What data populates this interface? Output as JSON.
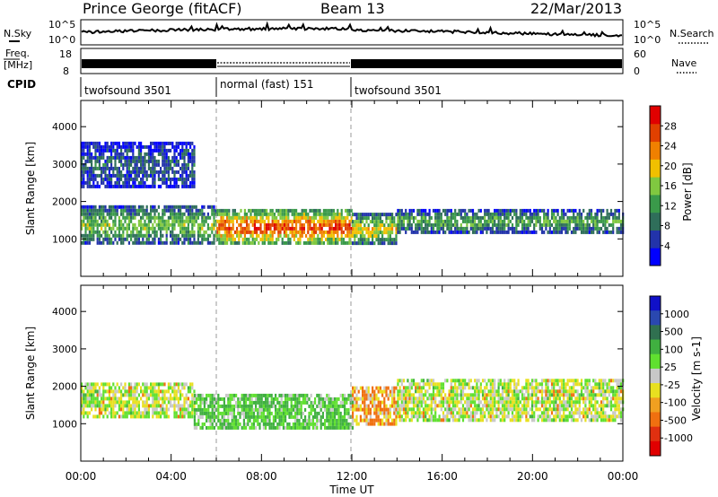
{
  "header": {
    "title": "Prince George (fitACF)",
    "beam": "Beam 13",
    "date": "22/Mar/2013"
  },
  "top_panels": {
    "nsky_label": "N.Sky",
    "nsearch_label": "N.Search",
    "noise_ticks": [
      "10^5",
      "10^0"
    ],
    "freq_label_1": "Freq.",
    "freq_label_2": "[MHz]",
    "freq_ticks": [
      "18",
      "8"
    ],
    "nave_label": "Nave",
    "nave_ticks": [
      "60",
      "0"
    ],
    "cpid_label": "CPID",
    "cpid_segments": [
      "twofsound 3501",
      "normal (fast) 151",
      "twofsound 3501"
    ]
  },
  "colors": {
    "power": [
      "#0000ff",
      "#2233aa",
      "#2f6e5a",
      "#3a9a4a",
      "#80c840",
      "#f0c000",
      "#f08000",
      "#e04000",
      "#e00000"
    ],
    "velocity": [
      "#1010c8",
      "#2a48b0",
      "#307050",
      "#40b040",
      "#60e030",
      "#c8c8c8",
      "#e8e020",
      "#f0a020",
      "#f07010",
      "#e03010",
      "#e00000"
    ]
  },
  "chart_data": [
    {
      "type": "heatmap",
      "name": "Power",
      "ylabel": "Slant Range [km]",
      "xlabel": "Time UT",
      "x_ticks": [
        "00:00",
        "04:00",
        "08:00",
        "12:00",
        "16:00",
        "20:00",
        "00:00"
      ],
      "y_ticks": [
        "1000",
        "2000",
        "3000",
        "4000"
      ],
      "ylim": [
        0,
        4700
      ],
      "colorbar": {
        "label": "Power [dB]",
        "ticks": [
          "4",
          "8",
          "12",
          "16",
          "20",
          "24",
          "28"
        ],
        "range": [
          0,
          32
        ]
      },
      "bands": [
        {
          "t": [
            0,
            6
          ],
          "range": [
            900,
            1900
          ],
          "value": 16
        },
        {
          "t": [
            6,
            12
          ],
          "range": [
            900,
            1800
          ],
          "value": 28
        },
        {
          "t": [
            12,
            14
          ],
          "range": [
            900,
            1700
          ],
          "value": 20
        },
        {
          "t": [
            14,
            24
          ],
          "range": [
            1200,
            1800
          ],
          "value": 14
        },
        {
          "t": [
            0,
            5
          ],
          "range": [
            2400,
            3600
          ],
          "value": 8
        }
      ]
    },
    {
      "type": "heatmap",
      "name": "Velocity",
      "ylabel": "Slant Range [km]",
      "xlabel": "Time UT",
      "x_ticks": [
        "00:00",
        "04:00",
        "08:00",
        "12:00",
        "16:00",
        "20:00",
        "00:00"
      ],
      "y_ticks": [
        "1000",
        "2000",
        "3000",
        "4000"
      ],
      "ylim": [
        0,
        4700
      ],
      "colorbar": {
        "label": "Velocity [m s-1]",
        "ticks": [
          "1000",
          "500",
          "100",
          "25",
          "-25",
          "-100",
          "-500",
          "-1000"
        ]
      },
      "bands": [
        {
          "t": [
            0,
            5
          ],
          "range": [
            1200,
            2100
          ],
          "value": 0
        },
        {
          "t": [
            5,
            12
          ],
          "range": [
            900,
            1800
          ],
          "value": 100
        },
        {
          "t": [
            12,
            14
          ],
          "range": [
            1000,
            2000
          ],
          "value": -100
        },
        {
          "t": [
            14,
            24
          ],
          "range": [
            1100,
            2200
          ],
          "value": 0
        }
      ]
    }
  ],
  "x_axis_title": "Time UT"
}
